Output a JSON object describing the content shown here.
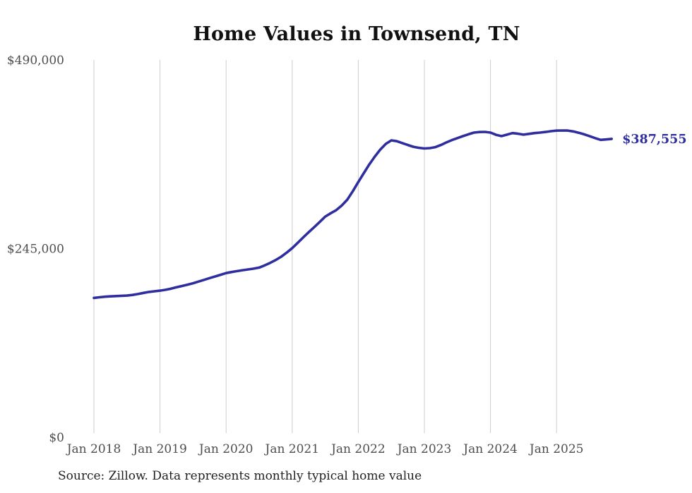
{
  "page": {
    "title": "Home Values in Townsend, TN",
    "source_note": "Source: Zillow. Data represents monthly typical home value"
  },
  "chart_data": {
    "type": "line",
    "title": "Home Values in Townsend, TN",
    "series_name": "Monthly typical home value",
    "legend": "none",
    "grid": "vertical-only",
    "ylim": [
      0,
      490000
    ],
    "line_color": "#2e2e9e",
    "grid_color": "#cccccc",
    "tick_label_color": "#4d4d4d",
    "end_label": "$387,555",
    "latest_value": 387555,
    "y_ticks": [
      {
        "value": 0,
        "label": "$0"
      },
      {
        "value": 245000,
        "label": "$245,000"
      },
      {
        "value": 490000,
        "label": "$490,000"
      }
    ],
    "x_ticks": [
      {
        "month": "2018-01",
        "label": "Jan 2018"
      },
      {
        "month": "2019-01",
        "label": "Jan 2019"
      },
      {
        "month": "2020-01",
        "label": "Jan 2020"
      },
      {
        "month": "2021-01",
        "label": "Jan 2021"
      },
      {
        "month": "2022-01",
        "label": "Jan 2022"
      },
      {
        "month": "2023-01",
        "label": "Jan 2023"
      },
      {
        "month": "2024-01",
        "label": "Jan 2024"
      },
      {
        "month": "2025-01",
        "label": "Jan 2025"
      }
    ],
    "x": [
      "2018-01",
      "2018-02",
      "2018-03",
      "2018-04",
      "2018-05",
      "2018-06",
      "2018-07",
      "2018-08",
      "2018-09",
      "2018-10",
      "2018-11",
      "2018-12",
      "2019-01",
      "2019-02",
      "2019-03",
      "2019-04",
      "2019-05",
      "2019-06",
      "2019-07",
      "2019-08",
      "2019-09",
      "2019-10",
      "2019-11",
      "2019-12",
      "2020-01",
      "2020-02",
      "2020-03",
      "2020-04",
      "2020-05",
      "2020-06",
      "2020-07",
      "2020-08",
      "2020-09",
      "2020-10",
      "2020-11",
      "2020-12",
      "2021-01",
      "2021-02",
      "2021-03",
      "2021-04",
      "2021-05",
      "2021-06",
      "2021-07",
      "2021-08",
      "2021-09",
      "2021-10",
      "2021-11",
      "2021-12",
      "2022-01",
      "2022-02",
      "2022-03",
      "2022-04",
      "2022-05",
      "2022-06",
      "2022-07",
      "2022-08",
      "2022-09",
      "2022-10",
      "2022-11",
      "2022-12",
      "2023-01",
      "2023-02",
      "2023-03",
      "2023-04",
      "2023-05",
      "2023-06",
      "2023-07",
      "2023-08",
      "2023-09",
      "2023-10",
      "2023-11",
      "2023-12",
      "2024-01",
      "2024-02",
      "2024-03",
      "2024-04",
      "2024-05",
      "2024-06",
      "2024-07",
      "2024-08",
      "2024-09",
      "2024-10",
      "2024-11",
      "2024-12",
      "2025-01",
      "2025-02",
      "2025-03",
      "2025-04",
      "2025-05",
      "2025-06",
      "2025-07",
      "2025-08",
      "2025-09",
      "2025-10",
      "2025-11"
    ],
    "values": [
      181000,
      181800,
      182500,
      183000,
      183400,
      183700,
      184000,
      184800,
      186000,
      187500,
      188800,
      189600,
      190400,
      191500,
      193000,
      194800,
      196500,
      198200,
      200000,
      202200,
      204400,
      206700,
      208800,
      211000,
      213200,
      214600,
      215800,
      217000,
      218000,
      219000,
      220400,
      223200,
      226500,
      230200,
      234500,
      239800,
      245600,
      252500,
      259600,
      266300,
      272800,
      279600,
      286600,
      291000,
      295000,
      301000,
      308600,
      319500,
      331500,
      343000,
      354400,
      364500,
      373700,
      381000,
      385600,
      384500,
      382000,
      379500,
      377300,
      375900,
      375100,
      375500,
      376800,
      379500,
      382900,
      386000,
      388500,
      391100,
      393500,
      395700,
      396400,
      396600,
      395700,
      392800,
      391100,
      393000,
      395000,
      394200,
      393000,
      394000,
      395000,
      395700,
      396500,
      397500,
      398200,
      398400,
      398300,
      397200,
      395500,
      393500,
      391000,
      388500,
      386200,
      386800,
      387555
    ]
  }
}
